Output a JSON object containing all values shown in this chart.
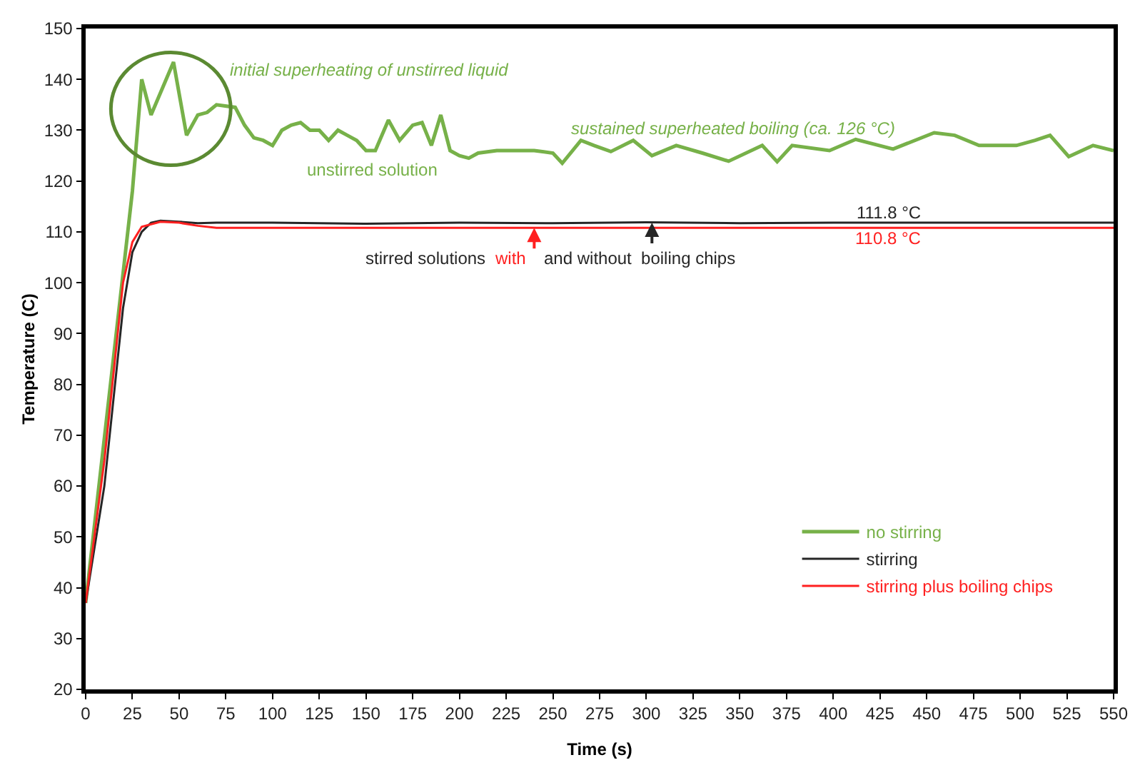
{
  "chart_data": {
    "type": "line",
    "xlabel": "Time (s)",
    "ylabel": "Temperature (C)",
    "xlim": [
      0,
      550
    ],
    "xticks": [
      0,
      25,
      50,
      75,
      100,
      125,
      150,
      175,
      200,
      225,
      250,
      275,
      300,
      325,
      350,
      375,
      400,
      425,
      450,
      475,
      500,
      525,
      550
    ],
    "ylim": [
      20,
      150
    ],
    "yticks": [
      20,
      30,
      40,
      50,
      60,
      70,
      80,
      90,
      100,
      110,
      120,
      130,
      140,
      150
    ],
    "grid": false,
    "legend": "bottom right",
    "marker": "none",
    "line_style": "solid",
    "series": [
      {
        "name": "no stirring",
        "color": "#77b149",
        "x": [
          0,
          25,
          30,
          35,
          47,
          54,
          60,
          65,
          70,
          80,
          85,
          90,
          95,
          100,
          105,
          110,
          115,
          120,
          125,
          130,
          135,
          140,
          145,
          150,
          155,
          162,
          168,
          175,
          180,
          185,
          190,
          195,
          200,
          205,
          210,
          220,
          230,
          240,
          250,
          255,
          265,
          272,
          281,
          293,
          303,
          316,
          330,
          344,
          362,
          370,
          378,
          398,
          412,
          432,
          454,
          465,
          478,
          498,
          508,
          516,
          526,
          539,
          550
        ],
        "values": [
          37,
          118,
          140,
          133,
          143.4,
          129,
          133,
          133.5,
          135,
          134.5,
          131,
          128.5,
          128,
          127,
          130,
          131,
          131.5,
          130,
          130,
          128,
          130,
          129,
          128,
          126,
          126,
          132,
          128,
          131,
          131.5,
          127,
          133,
          126,
          125,
          124.5,
          125.5,
          126,
          126,
          126,
          125.5,
          123.5,
          128,
          127,
          125.8,
          128,
          125,
          127,
          125.5,
          123.9,
          127,
          123.8,
          127,
          126,
          128.2,
          126.3,
          129.5,
          129,
          127,
          127,
          128,
          129,
          124.8,
          127,
          126
        ]
      },
      {
        "name": "stirring",
        "color": "#262626",
        "x": [
          0,
          10,
          20,
          25,
          30,
          35,
          40,
          50,
          60,
          70,
          100,
          150,
          200,
          250,
          300,
          350,
          400,
          450,
          500,
          550
        ],
        "values": [
          37,
          60,
          95,
          106,
          110,
          111.8,
          112.2,
          112,
          111.7,
          111.8,
          111.8,
          111.6,
          111.8,
          111.7,
          111.9,
          111.7,
          111.8,
          111.8,
          111.8,
          111.8
        ]
      },
      {
        "name": "stirring plus boiling chips",
        "color": "#ff2020",
        "x": [
          0,
          10,
          20,
          25,
          30,
          40,
          50,
          60,
          70,
          100,
          150,
          200,
          250,
          300,
          350,
          400,
          450,
          500,
          550
        ],
        "values": [
          37,
          65,
          100,
          108,
          111,
          112,
          111.8,
          111.2,
          110.8,
          110.8,
          110.8,
          110.8,
          110.8,
          110.8,
          110.8,
          110.8,
          110.8,
          110.8,
          110.8
        ]
      }
    ],
    "annotations": [
      "initial superheating of unstirred liquid",
      "unstirred solution",
      "sustained superheated boiling (ca. 126 °C)",
      "111.8 °C",
      "110.8 °C",
      "stirred solutions",
      {
        "text": "with",
        "x": 240,
        "y": 110.8
      },
      {
        "text": "and without  boiling chips",
        "x": 303,
        "y": 111.8
      }
    ]
  }
}
